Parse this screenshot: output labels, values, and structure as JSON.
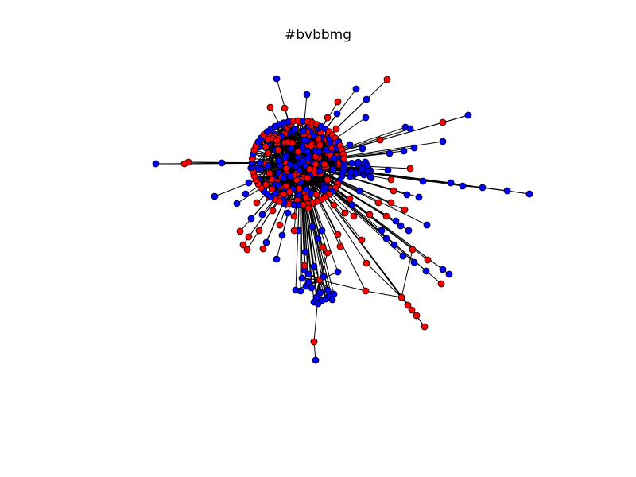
{
  "title": "#bvbbmg",
  "colors": {
    "background": "#ffffff",
    "edge": "#000000",
    "node_outline": "#000000",
    "node_group_a": "#0000ff",
    "node_group_b": "#ff0000"
  }
}
